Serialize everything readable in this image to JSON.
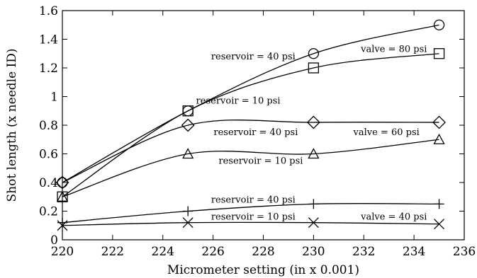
{
  "chart_data": {
    "type": "scatter",
    "xlabel": "Micrometer setting (in x 0.001)",
    "ylabel": "Shot length (x needle ID)",
    "xlim": [
      220,
      236
    ],
    "ylim": [
      0,
      1.6
    ],
    "xticks": [
      220,
      222,
      224,
      226,
      228,
      230,
      232,
      234,
      236
    ],
    "yticks": [
      0,
      0.2,
      0.4,
      0.6,
      0.8,
      1,
      1.2,
      1.4,
      1.6
    ],
    "xtick_labels": [
      "220",
      "222",
      "224",
      "226",
      "228",
      "230",
      "232",
      "234",
      "236"
    ],
    "ytick_labels": [
      "0",
      "0.2",
      "0.4",
      "0.6",
      "0.8",
      "1",
      "1.2",
      "1.4",
      "1.6"
    ],
    "grid": false,
    "legend": "none",
    "series": [
      {
        "marker": "circle",
        "x": [
          220,
          225,
          230,
          235
        ],
        "y": [
          0.4,
          0.9,
          1.3,
          1.5
        ]
      },
      {
        "marker": "square",
        "x": [
          220,
          225,
          230,
          235
        ],
        "y": [
          0.3,
          0.9,
          1.2,
          1.3
        ]
      },
      {
        "marker": "diamond",
        "x": [
          220,
          225,
          230,
          235
        ],
        "y": [
          0.4,
          0.8,
          0.82,
          0.82
        ]
      },
      {
        "marker": "triangle",
        "x": [
          220,
          225,
          230,
          235
        ],
        "y": [
          0.3,
          0.6,
          0.6,
          0.7
        ]
      },
      {
        "marker": "plus",
        "x": [
          220,
          225,
          230,
          235
        ],
        "y": [
          0.12,
          0.2,
          0.25,
          0.25
        ]
      },
      {
        "marker": "cross",
        "x": [
          220,
          225,
          230,
          235
        ],
        "y": [
          0.1,
          0.12,
          0.12,
          0.11
        ]
      }
    ],
    "annotations": [
      {
        "text": "reservoir = 40 psi",
        "x": 227.6,
        "y": 1.28
      },
      {
        "text": "valve = 80 psi",
        "x": 233.2,
        "y": 1.33
      },
      {
        "text": "reservoir = 10 psi",
        "x": 227.0,
        "y": 0.97
      },
      {
        "text": "reservoir = 40 psi",
        "x": 227.7,
        "y": 0.75
      },
      {
        "text": "valve = 60 psi",
        "x": 232.9,
        "y": 0.75
      },
      {
        "text": "reservoir = 10 psi",
        "x": 227.9,
        "y": 0.55
      },
      {
        "text": "reservoir = 40 psi",
        "x": 227.6,
        "y": 0.28
      },
      {
        "text": "reservoir = 10 psi",
        "x": 227.6,
        "y": 0.16
      },
      {
        "text": "valve = 40 psi",
        "x": 233.2,
        "y": 0.16
      }
    ]
  }
}
